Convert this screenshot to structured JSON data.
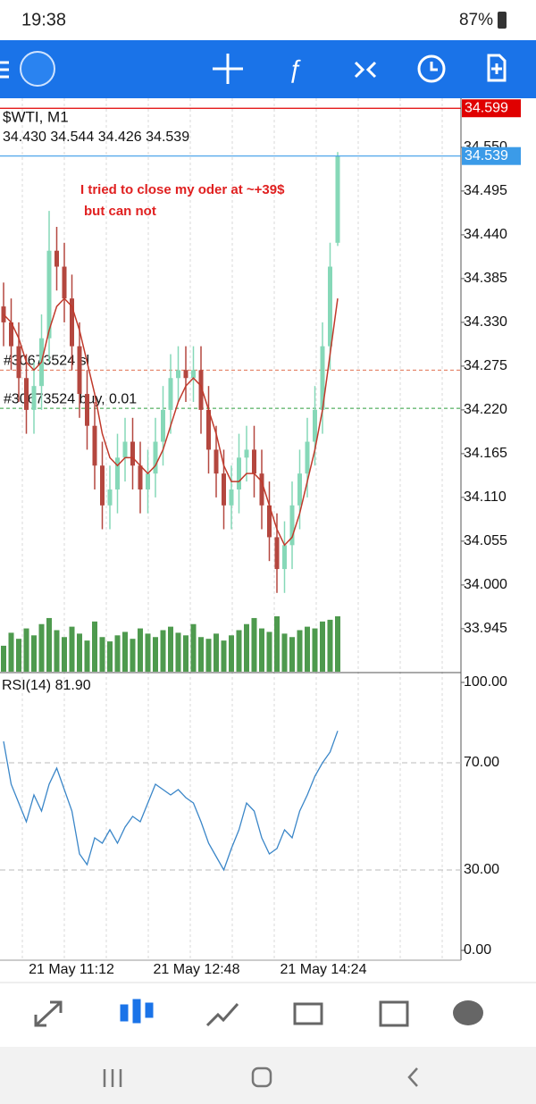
{
  "status_bar": {
    "time": "19:38",
    "battery": "87%"
  },
  "chart_data": {
    "type": "candlestick",
    "title": "$WTI, M1",
    "subtitle": "34.430 34.544 34.426 34.539",
    "annotation": [
      "I tried to close my oder at ~+39$",
      "but can not"
    ],
    "ylim": [
      33.891,
      34.606
    ],
    "yticks": [
      {
        "value": 34.55,
        "label": "34.550"
      },
      34.495,
      {
        "value": 34.44,
        "label": "34.440"
      },
      34.385,
      {
        "value": 34.33,
        "label": "34.330"
      },
      34.275,
      {
        "value": 34.22,
        "label": "34.220"
      },
      34.165,
      {
        "value": 34.11,
        "label": "34.110"
      },
      34.055,
      {
        "value": 34,
        "label": "34.000"
      },
      33.945
    ],
    "price_lines": [
      {
        "value": 34.599,
        "color": "#e00000"
      },
      {
        "value": 34.539,
        "color": "#3b9be8"
      }
    ],
    "order_lines": [
      {
        "name": "#30673524 sl",
        "value": 34.27,
        "color": "#e07050"
      },
      {
        "name": "#30673524 buy, 0.01",
        "value": 34.222,
        "color": "#2e9e3e"
      }
    ],
    "up_color": "#86d8b8",
    "down_color": "#b4473f",
    "ma_color": "#c0392b",
    "volume_color": "#4e9a4e",
    "open": [
      34.35,
      34.33,
      34.3,
      34.26,
      34.22,
      34.25,
      34.31,
      34.42,
      34.4,
      34.36,
      34.3,
      34.24,
      34.2,
      34.15,
      34.1,
      34.12,
      34.16,
      34.18,
      34.15,
      34.12,
      34.14,
      34.18,
      34.22,
      34.26,
      34.27,
      34.26,
      34.27,
      34.22,
      34.17,
      34.14,
      34.1,
      34.12,
      34.16,
      34.17,
      34.14,
      34.1,
      34.06,
      34.02,
      34.05,
      34.1,
      34.14,
      34.18,
      34.22,
      34.3,
      34.43
    ],
    "high": [
      34.38,
      34.36,
      34.33,
      34.29,
      34.28,
      34.34,
      34.47,
      34.45,
      34.43,
      34.39,
      34.33,
      34.27,
      34.23,
      34.18,
      34.15,
      34.19,
      34.21,
      34.21,
      34.18,
      34.17,
      34.21,
      34.25,
      34.29,
      34.3,
      34.3,
      34.3,
      34.3,
      34.25,
      34.2,
      34.17,
      34.15,
      34.19,
      34.2,
      34.2,
      34.17,
      34.13,
      34.09,
      34.08,
      34.13,
      34.17,
      34.21,
      34.25,
      34.33,
      34.43,
      34.544
    ],
    "low": [
      34.3,
      34.27,
      34.23,
      34.19,
      34.19,
      34.22,
      34.28,
      34.37,
      34.33,
      34.27,
      34.21,
      34.17,
      34.12,
      34.07,
      34.07,
      34.09,
      34.13,
      34.12,
      34.09,
      34.09,
      34.11,
      34.15,
      34.19,
      34.23,
      34.23,
      34.23,
      34.19,
      34.14,
      34.11,
      34.07,
      34.07,
      34.09,
      34.13,
      34.11,
      34.07,
      34.03,
      33.99,
      33.99,
      34.02,
      34.07,
      34.11,
      34.15,
      34.19,
      34.27,
      34.426
    ],
    "close": [
      34.33,
      34.3,
      34.26,
      34.22,
      34.25,
      34.31,
      34.42,
      34.4,
      34.36,
      34.3,
      34.24,
      34.2,
      34.15,
      34.1,
      34.12,
      34.16,
      34.18,
      34.15,
      34.12,
      34.14,
      34.18,
      34.22,
      34.26,
      34.27,
      34.26,
      34.27,
      34.22,
      34.17,
      34.14,
      34.1,
      34.12,
      34.16,
      34.17,
      34.14,
      34.1,
      34.06,
      34.02,
      34.05,
      34.1,
      34.14,
      34.18,
      34.22,
      34.3,
      34.4,
      34.539
    ],
    "ma": [
      34.34,
      34.33,
      34.31,
      34.28,
      34.27,
      34.28,
      34.32,
      34.35,
      34.36,
      34.35,
      34.32,
      34.28,
      34.24,
      34.19,
      34.16,
      34.15,
      34.16,
      34.16,
      34.15,
      34.14,
      34.15,
      34.17,
      34.2,
      34.23,
      34.25,
      34.26,
      34.25,
      34.22,
      34.19,
      34.15,
      34.13,
      34.13,
      34.14,
      34.14,
      34.13,
      34.1,
      34.07,
      34.05,
      34.06,
      34.09,
      34.13,
      34.17,
      34.22,
      34.29,
      34.36
    ],
    "volume": [
      30,
      45,
      38,
      50,
      42,
      55,
      62,
      48,
      40,
      52,
      44,
      36,
      58,
      40,
      35,
      42,
      46,
      38,
      50,
      44,
      40,
      48,
      52,
      45,
      42,
      55,
      40,
      38,
      44,
      36,
      42,
      48,
      55,
      62,
      50,
      46,
      64,
      44,
      40,
      48,
      52,
      50,
      58,
      60,
      64
    ],
    "xlabels": [
      "21 May 11:12",
      "21 May 12:48",
      "21 May 14:24"
    ],
    "rsi": {
      "title": "RSI(14) 81.90",
      "color": "#3a86c8",
      "ylim": [
        0,
        100
      ],
      "yticks": [
        {
          "value": 100,
          "label": "100.00"
        },
        {
          "value": 70,
          "label": "70.00"
        },
        {
          "value": 30,
          "label": "30.00"
        },
        {
          "value": 0,
          "label": "0.00"
        }
      ],
      "values": [
        78,
        62,
        55,
        48,
        58,
        52,
        62,
        68,
        60,
        52,
        36,
        32,
        42,
        40,
        45,
        40,
        46,
        50,
        48,
        55,
        62,
        60,
        58,
        60,
        57,
        55,
        48,
        40,
        35,
        30,
        38,
        45,
        55,
        52,
        42,
        36,
        38,
        45,
        42,
        52,
        58,
        65,
        70,
        74,
        81.9
      ]
    }
  }
}
